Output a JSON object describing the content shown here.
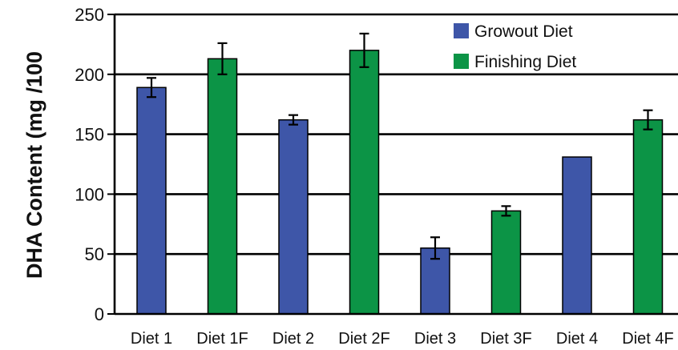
{
  "chart_data": {
    "type": "bar",
    "title": "",
    "xlabel": "",
    "ylabel": "DHA Content (mg /100",
    "ylim": [
      0,
      250
    ],
    "yticks": [
      0,
      50,
      100,
      150,
      200,
      250
    ],
    "grid": true,
    "legend_position": "top-right",
    "categories": [
      "Diet 1",
      "Diet 1F",
      "Diet 2",
      "Diet 2F",
      "Diet 3",
      "Diet 3F",
      "Diet 4",
      "Diet 4F"
    ],
    "series": [
      {
        "name": "Growout Diet",
        "color": "#3e56a8",
        "points": [
          {
            "category": "Diet 1",
            "value": 189,
            "error": 8
          },
          {
            "category": "Diet 2",
            "value": 162,
            "error": 4
          },
          {
            "category": "Diet 3",
            "value": 55,
            "error": 9
          },
          {
            "category": "Diet 4",
            "value": 131,
            "error": null
          }
        ]
      },
      {
        "name": "Finishing Diet",
        "color": "#0c9446",
        "points": [
          {
            "category": "Diet 1F",
            "value": 213,
            "error": 13
          },
          {
            "category": "Diet 2F",
            "value": 220,
            "error": 14
          },
          {
            "category": "Diet 3F",
            "value": 86,
            "error": 4
          },
          {
            "category": "Diet 4F",
            "value": 162,
            "error": 8
          }
        ]
      }
    ]
  }
}
